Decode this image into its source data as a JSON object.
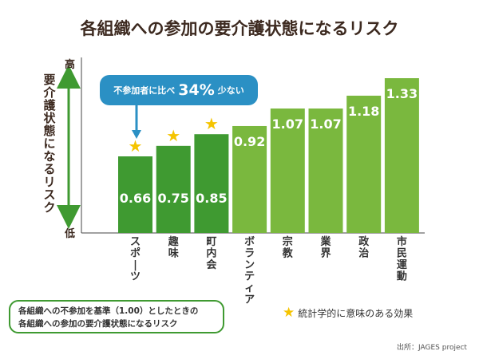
{
  "chart_data": {
    "type": "bar",
    "title": "各組織への参加の要介護状態になるリスク",
    "ylabel": "要介護状態になるリスク",
    "ytick_high": "高",
    "ytick_low": "低",
    "categories": [
      "スポーツ",
      "趣味",
      "町内会",
      "ボランティア",
      "宗教",
      "業界",
      "政治",
      "市民運動"
    ],
    "values": [
      0.66,
      0.75,
      0.85,
      0.92,
      1.07,
      1.07,
      1.18,
      1.33
    ],
    "value_labels": [
      "0.66",
      "0.75",
      "0.85",
      "0.92",
      "1.07",
      "1.07",
      "1.18",
      "1.33"
    ],
    "significant": [
      true,
      true,
      true,
      false,
      false,
      false,
      false,
      false
    ],
    "colors": {
      "significant": "#3f9a31",
      "other": "#7ab83e",
      "star": "#f5c400",
      "callout": "#2b90c4",
      "arrow": "#3f9a31"
    }
  },
  "callout": {
    "prefix": "不参加者に比べ",
    "value": "34%",
    "suffix": "少ない"
  },
  "note": {
    "line1": "各組織への不参加を基準（1.00）としたときの",
    "line2": "各組織への参加の要介護状態になるリスク"
  },
  "legend": {
    "star_glyph": "★",
    "text": "統計学的に意味のある効果"
  },
  "source": "出所：JAGES project"
}
